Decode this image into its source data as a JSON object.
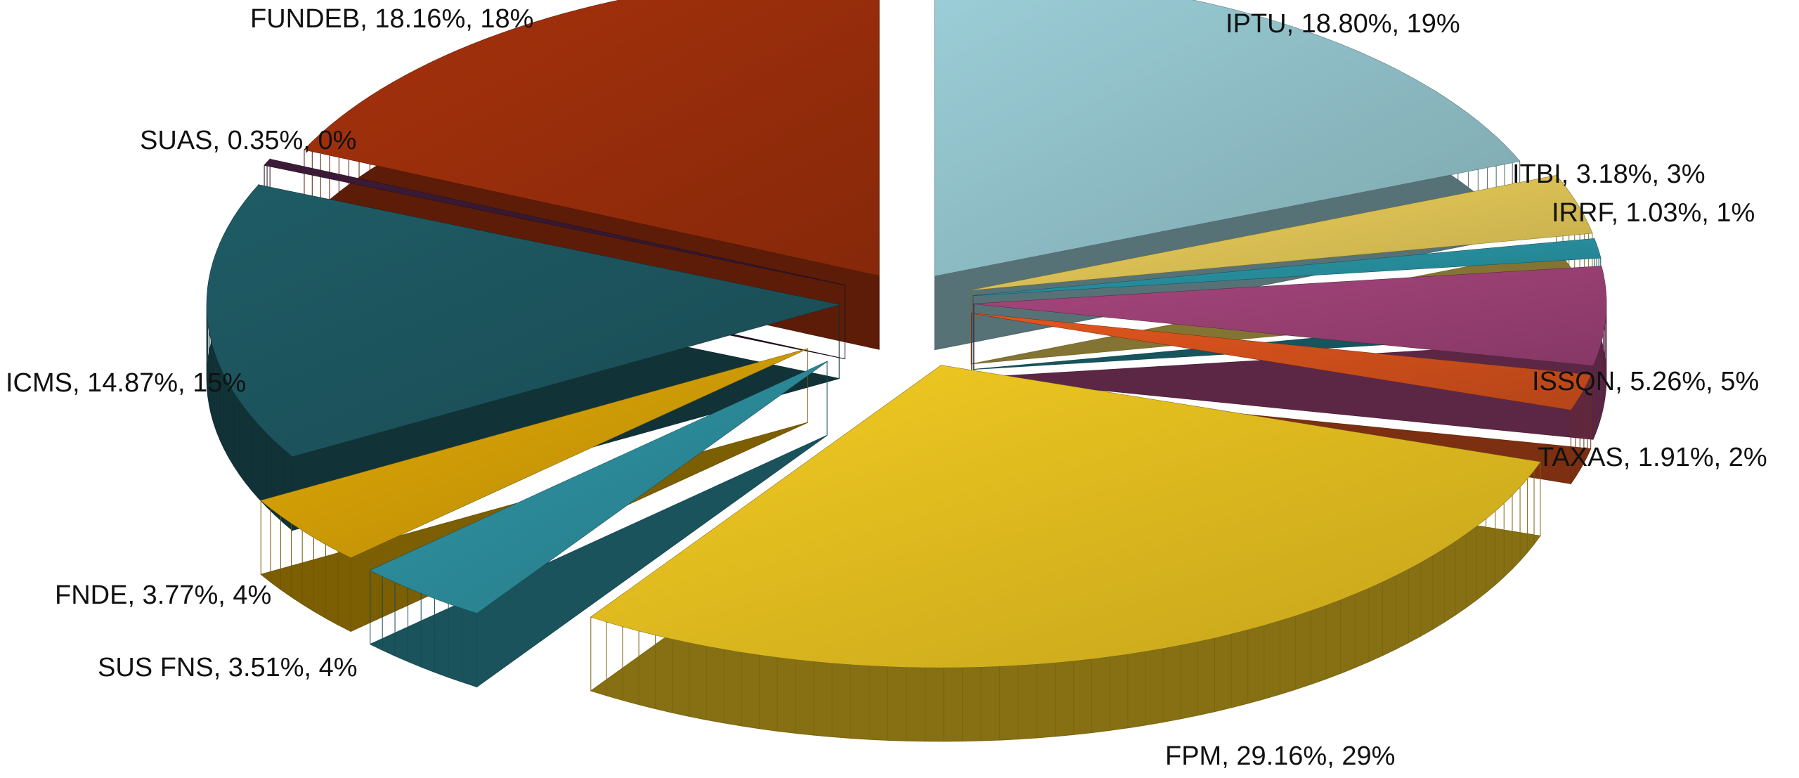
{
  "chart_data": {
    "type": "pie",
    "labels": [
      "IPTU, 18.80%, 19%",
      "ITBI, 3.18%, 3%",
      "IRRF, 1.03%, 1%",
      "ISSQN, 5.26%, 5%",
      "TAXAS, 1.91%, 2%",
      "FPM, 29.16%, 29%",
      "SUS FNS, 3.51%, 4%",
      "FNDE, 3.77%, 4%",
      "ICMS, 14.87%, 15%",
      "SUAS, 0.35%, 0%",
      "FUNDEB, 18.16%, 18%"
    ],
    "values": [
      18.8,
      3.18,
      1.03,
      5.26,
      1.91,
      29.16,
      3.51,
      3.77,
      14.87,
      0.35,
      18.16
    ],
    "colors": [
      "#9ccfd8",
      "#f0d35c",
      "#2a9bab",
      "#a8467e",
      "#e2561e",
      "#f4cc22",
      "#2f96a6",
      "#e2aa06",
      "#1f5c66",
      "#3c1b38",
      "#a8320c"
    ]
  }
}
